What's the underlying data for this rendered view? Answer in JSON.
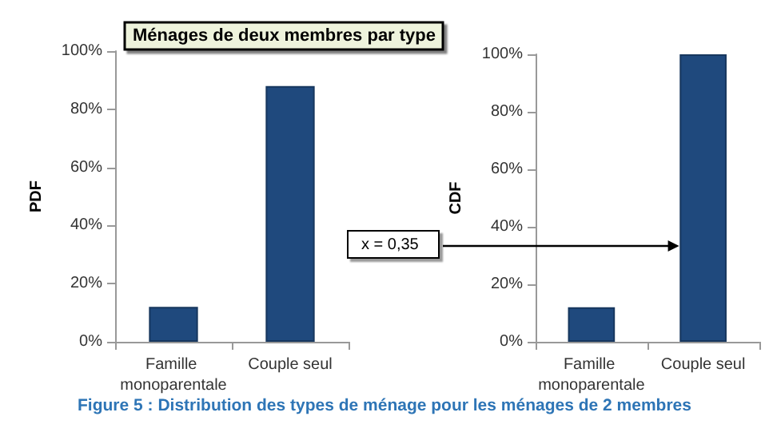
{
  "chart_data": [
    {
      "type": "bar",
      "title": "Ménages de deux membres par type",
      "categories": [
        "Famille monoparentale",
        "Couple seul"
      ],
      "values": [
        12,
        88
      ],
      "color": "#1f497d",
      "ylabel": "PDF",
      "ylim": [
        0,
        100
      ],
      "yticks": [
        {
          "value": 0,
          "label": "0%"
        },
        {
          "value": 20,
          "label": "20%"
        },
        {
          "value": 40,
          "label": "40%"
        },
        {
          "value": 60,
          "label": "60%"
        },
        {
          "value": 80,
          "label": "80%"
        },
        {
          "value": 100,
          "label": "100%"
        }
      ],
      "grid": false,
      "annotations": [
        "Figure 5 : Distribution des types de ménage pour les ménages de 2 membres"
      ]
    },
    {
      "type": "bar",
      "categories": [
        "Famille monoparentale",
        "Couple seul"
      ],
      "values": [
        12,
        100
      ],
      "color": "#1f497d",
      "ylabel": "CDF",
      "ylim": [
        0,
        100
      ],
      "yticks": [
        {
          "value": 0,
          "label": "0%"
        },
        {
          "value": 20,
          "label": "20%"
        },
        {
          "value": 40,
          "label": "40%"
        },
        {
          "value": 60,
          "label": "60%"
        },
        {
          "value": 80,
          "label": "80%"
        },
        {
          "value": 100,
          "label": "100%"
        }
      ],
      "grid": false,
      "annotations": [
        "x = 0,35"
      ]
    }
  ]
}
